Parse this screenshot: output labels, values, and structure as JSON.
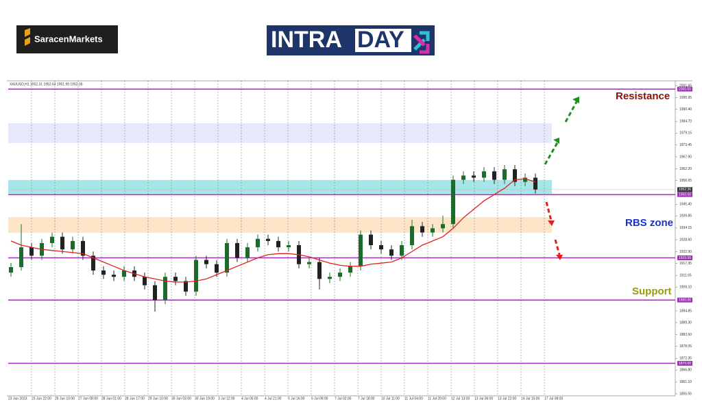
{
  "header": {
    "brand": "SaracenMarkets",
    "logo_left": "INTRA",
    "logo_right": "DAY"
  },
  "chart_data": {
    "type": "candlestick",
    "symbol_info": "XAUUSD,H1  1952.31 1952.63 1951.99 1952.36",
    "ylim": [
      1855.55,
      2001.65
    ],
    "yticks": [
      {
        "value": 2001.65,
        "label": "2001.65"
      },
      {
        "value": 1995.95,
        "label": "1995.95"
      },
      {
        "value": 1990.4,
        "label": "1990.40"
      },
      {
        "value": 1984.7,
        "label": "1984.70"
      },
      {
        "value": 1979.15,
        "label": "1979.15"
      },
      {
        "value": 1973.45,
        "label": "1973.45"
      },
      {
        "value": 1967.9,
        "label": "1967.90"
      },
      {
        "value": 1962.2,
        "label": "1962.20"
      },
      {
        "value": 1956.65,
        "label": "1956.65"
      },
      {
        "value": 1945.4,
        "label": "1945.40"
      },
      {
        "value": 1939.85,
        "label": "1939.85"
      },
      {
        "value": 1934.15,
        "label": "1934.15"
      },
      {
        "value": 1928.6,
        "label": "1928.60"
      },
      {
        "value": 1922.9,
        "label": "1922.90"
      },
      {
        "value": 1917.35,
        "label": "1917.35"
      },
      {
        "value": 1911.65,
        "label": "1911.65"
      },
      {
        "value": 1906.1,
        "label": "1906.10"
      },
      {
        "value": 1894.85,
        "label": "1894.85"
      },
      {
        "value": 1889.3,
        "label": "1889.30"
      },
      {
        "value": 1883.6,
        "label": "1883.60"
      },
      {
        "value": 1878.05,
        "label": "1878.05"
      },
      {
        "value": 1872.35,
        "label": "1872.35"
      },
      {
        "value": 1866.8,
        "label": "1866.80"
      },
      {
        "value": 1861.1,
        "label": "1861.10"
      },
      {
        "value": 1855.55,
        "label": "1855.55"
      }
    ],
    "x_axis_labels": [
      "23 Jun 2023",
      "23 Jun 22:00",
      "26 Jun 10:00",
      "27 Jun 08:00",
      "28 Jun 01:00",
      "28 Jun 17:00",
      "29 Jun 10:00",
      "30 Jun 03:00",
      "30 Jun 19:00",
      "3 Jul 12:00",
      "4 Jul 05:00",
      "4 Jul 21:00",
      "5 Jul 16:00",
      "6 Jul 09:00",
      "7 Jul 02:00",
      "7 Jul 18:00",
      "10 Jul 11:00",
      "11 Jul 04:00",
      "11 Jul 20:00",
      "12 Jul 13:00",
      "13 Jul 06:00",
      "13 Jul 22:00",
      "14 Jul 15:00",
      "17 Jul 08:00"
    ],
    "open": [
      1913,
      1915.6,
      1925,
      1921,
      1927,
      1930,
      1924,
      1928,
      1921,
      1914,
      1912,
      1911,
      1914,
      1911,
      1907,
      1900,
      1911,
      1909,
      1904,
      1919,
      1917,
      1913,
      1927,
      1920,
      1925,
      1929,
      1928,
      1925,
      1926,
      1917,
      1918,
      1910,
      1911,
      1913,
      1916,
      1931,
      1926,
      1924,
      1921,
      1926,
      1935,
      1932,
      1934,
      1936,
      1957,
      1959,
      1958,
      1961,
      1957,
      1962,
      1956,
      1958
    ],
    "high": [
      1917.6,
      1936,
      1927,
      1929,
      1932,
      1932,
      1930,
      1930,
      1923,
      1916,
      1914,
      1916,
      1916,
      1913,
      1909,
      1913,
      1913,
      1911,
      1921,
      1921,
      1919,
      1929,
      1929,
      1927,
      1931,
      1931,
      1930,
      1928,
      1928,
      1920,
      1920,
      1913,
      1915,
      1918,
      1933,
      1933,
      1928,
      1926,
      1928,
      1938,
      1937,
      1936,
      1940,
      1959,
      1961,
      1961,
      1963,
      1963,
      1964,
      1964,
      1960,
      1960
    ],
    "low": [
      1911,
      1914,
      1919,
      1919,
      1925,
      1922,
      1922,
      1919,
      1912,
      1910,
      1909,
      1909,
      1909,
      1905,
      1894.5,
      1898,
      1907,
      1902,
      1902,
      1915,
      1911,
      1911,
      1918,
      1918,
      1923,
      1926,
      1923,
      1923,
      1915,
      1915,
      1905,
      1908,
      1909,
      1911,
      1914,
      1924,
      1922,
      1919,
      1919,
      1924,
      1930,
      1930,
      1932,
      1934,
      1955,
      1956,
      1956,
      1955,
      1955,
      1954,
      1954,
      1950.5
    ],
    "close": [
      1915.6,
      1925,
      1921,
      1927,
      1930,
      1924,
      1928,
      1921,
      1914,
      1912,
      1911,
      1914,
      1911,
      1907,
      1900,
      1911,
      1909,
      1904,
      1919,
      1917,
      1913,
      1927,
      1920,
      1925,
      1929,
      1928,
      1925,
      1926,
      1917,
      1918,
      1910,
      1911,
      1913,
      1916,
      1931,
      1926,
      1924,
      1921,
      1926,
      1935,
      1932,
      1934,
      1936,
      1957,
      1959,
      1958,
      1961,
      1957,
      1962,
      1956,
      1958,
      1952.4
    ],
    "moving_average": {
      "color": "#e02020",
      "values": [
        1928,
        1926,
        1925,
        1924,
        1923.5,
        1923,
        1922.5,
        1922,
        1920,
        1918,
        1916,
        1914,
        1912.5,
        1911,
        1910,
        1909,
        1908.5,
        1908.5,
        1909,
        1910,
        1912,
        1914,
        1916,
        1918,
        1920,
        1921.5,
        1922,
        1922,
        1921.5,
        1920.5,
        1919,
        1917.5,
        1916.5,
        1916,
        1916,
        1917,
        1917.5,
        1918,
        1920,
        1923,
        1926,
        1928,
        1930,
        1934,
        1939,
        1943,
        1947,
        1950,
        1953,
        1957,
        1957.5,
        1956
      ]
    },
    "up_color": "#1d6b2c",
    "down_color": "#222222",
    "levels": [
      {
        "value": 2000,
        "label": "2000.00"
      },
      {
        "value": 1950,
        "label": "1950.00"
      },
      {
        "value": 1920,
        "label": "1920.00"
      },
      {
        "value": 1900,
        "label": "1900.00"
      },
      {
        "value": 1870,
        "label": "1870.00"
      }
    ],
    "level_color": "#9b30b0",
    "current_price": {
      "value": 1952.36,
      "label": "1952.36"
    },
    "zones": [
      {
        "range": [
          1974.4,
          1983.8
        ],
        "color": "#e8e8fb"
      },
      {
        "range": [
          1950.4,
          1956.9
        ],
        "color": "#a6e6e8"
      },
      {
        "range": [
          1931.9,
          1939.3
        ],
        "color": "#fde6c8"
      }
    ],
    "annotations": [
      {
        "text": "Resistance",
        "color": "#8b1010"
      },
      {
        "text": "RBS zone",
        "color": "#1a2fc8"
      },
      {
        "text": "Support",
        "color": "#9a9a10"
      }
    ]
  }
}
